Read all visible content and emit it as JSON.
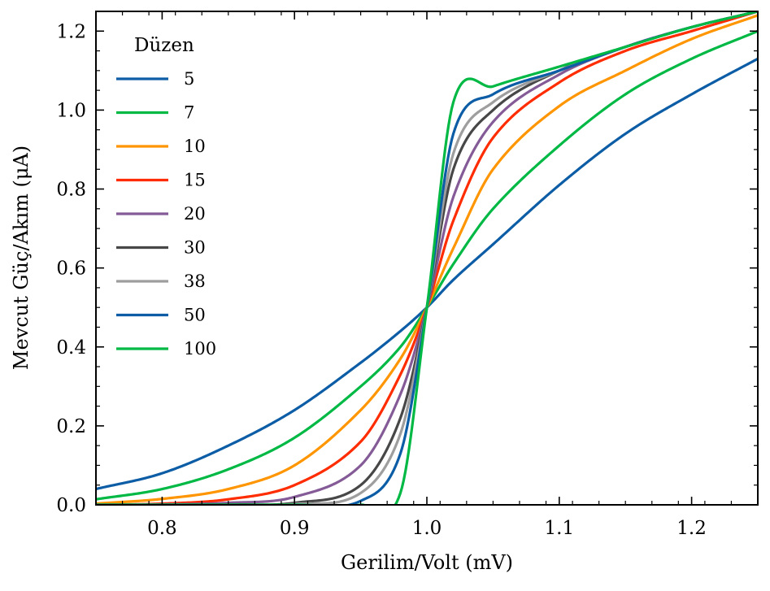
{
  "chart_data": {
    "type": "line",
    "title": "",
    "xlabel": "Gerilim/Volt (mV)",
    "ylabel": "Mevcut Güç/Akım (μA)",
    "xlim": [
      0.75,
      1.25
    ],
    "ylim": [
      0.0,
      1.25
    ],
    "xticks": [
      0.8,
      0.9,
      1.0,
      1.1,
      1.2
    ],
    "xtick_labels": [
      "0.8",
      "0.9",
      "1.0",
      "1.1",
      "1.2"
    ],
    "yticks": [
      0.0,
      0.2,
      0.4,
      0.6,
      0.8,
      1.0,
      1.2
    ],
    "ytick_labels": [
      "0.0",
      "0.2",
      "0.4",
      "0.6",
      "0.8",
      "1.0",
      "1.2"
    ],
    "grid": false,
    "legend": {
      "title": "Düzen",
      "placement": "top-left"
    },
    "x": [
      0.75,
      0.8,
      0.85,
      0.9,
      0.95,
      0.98,
      1.0,
      1.02,
      1.05,
      1.1,
      1.15,
      1.2,
      1.25
    ],
    "series": [
      {
        "name": "5",
        "color": "#0C5DA5",
        "values": [
          0.04,
          0.08,
          0.15,
          0.24,
          0.36,
          0.44,
          0.5,
          0.57,
          0.66,
          0.81,
          0.94,
          1.04,
          1.13
        ]
      },
      {
        "name": "7",
        "color": "#00B945",
        "values": [
          0.014,
          0.04,
          0.09,
          0.17,
          0.3,
          0.4,
          0.5,
          0.61,
          0.75,
          0.91,
          1.04,
          1.13,
          1.2
        ]
      },
      {
        "name": "10",
        "color": "#FF9500",
        "values": [
          0.003,
          0.015,
          0.04,
          0.1,
          0.24,
          0.37,
          0.5,
          0.65,
          0.85,
          1.01,
          1.1,
          1.18,
          1.24
        ]
      },
      {
        "name": "15",
        "color": "#FF2C00",
        "values": [
          0.0,
          0.003,
          0.014,
          0.05,
          0.16,
          0.33,
          0.5,
          0.72,
          0.93,
          1.07,
          1.15,
          1.2,
          1.25
        ]
      },
      {
        "name": "20",
        "color": "#845B97",
        "values": [
          0.0,
          0.001,
          0.005,
          0.02,
          0.1,
          0.28,
          0.5,
          0.78,
          0.97,
          1.09,
          1.16,
          1.21,
          1.25
        ]
      },
      {
        "name": "30",
        "color": "#474747",
        "values": [
          0.0,
          0.0,
          0.001,
          0.005,
          0.05,
          0.22,
          0.5,
          0.85,
          1.0,
          1.1,
          1.16,
          1.21,
          1.25
        ]
      },
      {
        "name": "38",
        "color": "#9E9E9E",
        "values": [
          0.0,
          0.0,
          0.0,
          0.002,
          0.03,
          0.18,
          0.5,
          0.89,
          1.02,
          1.1,
          1.16,
          1.21,
          1.25
        ]
      },
      {
        "name": "50",
        "color": "#0C5DA5",
        "values": [
          0.0,
          0.0,
          0.0,
          0.0,
          0.01,
          0.13,
          0.5,
          0.94,
          1.04,
          1.1,
          1.16,
          1.21,
          1.25
        ]
      },
      {
        "name": "100",
        "color": "#00B945",
        "values": [
          0.0,
          0.0,
          0.0,
          0.0,
          0.0,
          0.03,
          0.5,
          1.02,
          1.06,
          1.11,
          1.16,
          1.21,
          1.25
        ]
      }
    ],
    "curve_model": {
      "center_x": 1.0,
      "center_y": 0.5,
      "asymptote_slope": 1.0
    }
  }
}
